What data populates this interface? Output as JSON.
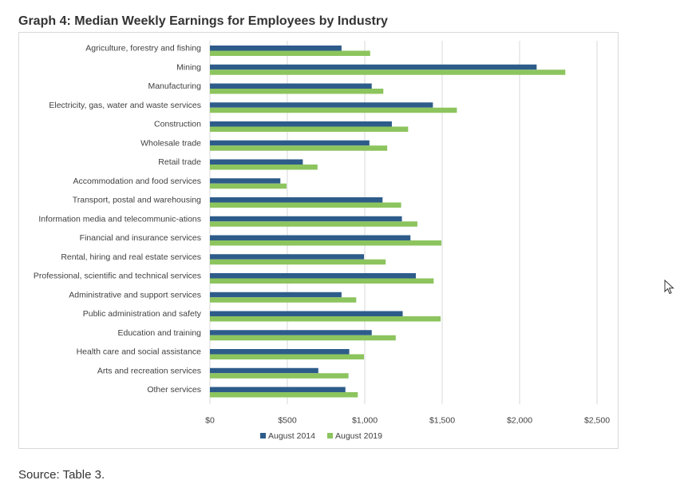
{
  "page": {
    "title": "Graph 4: Median Weekly Earnings for Employees by Industry",
    "source": "Source: Table 3."
  },
  "cursor_icon": "mouse-pointer-icon",
  "chart_data": {
    "type": "bar",
    "orientation": "horizontal",
    "categories": [
      "Agriculture, forestry and fishing",
      "Mining",
      "Manufacturing",
      "Electricity, gas, water and waste services",
      "Construction",
      "Wholesale trade",
      "Retail trade",
      "Accommodation and food services",
      "Transport, postal and warehousing",
      "Information media and telecommunic-ations",
      "Financial and insurance services",
      "Rental, hiring and real estate services",
      "Professional, scientific and technical services",
      "Administrative and support services",
      "Public administration and safety",
      "Education and training",
      "Health care and social assistance",
      "Arts and recreation services",
      "Other services"
    ],
    "series": [
      {
        "name": "August 2014",
        "color": "#2e5c8a",
        "values": [
          850,
          2110,
          1045,
          1440,
          1175,
          1030,
          600,
          455,
          1115,
          1240,
          1295,
          995,
          1330,
          850,
          1245,
          1045,
          900,
          700,
          875
        ]
      },
      {
        "name": "August 2019",
        "color": "#8cc45e",
        "values": [
          1035,
          2295,
          1120,
          1595,
          1280,
          1145,
          695,
          495,
          1235,
          1340,
          1495,
          1135,
          1445,
          945,
          1490,
          1200,
          995,
          895,
          955
        ]
      }
    ],
    "x_ticks": [
      "$0",
      "$500",
      "$1,000",
      "$1,500",
      "$2,000",
      "$2,500"
    ],
    "x_tick_values": [
      0,
      500,
      1000,
      1500,
      2000,
      2500
    ],
    "xlim": [
      0,
      2500
    ],
    "grid": true,
    "legend_position": "bottom",
    "gridline_color": "#d9d9d9"
  }
}
